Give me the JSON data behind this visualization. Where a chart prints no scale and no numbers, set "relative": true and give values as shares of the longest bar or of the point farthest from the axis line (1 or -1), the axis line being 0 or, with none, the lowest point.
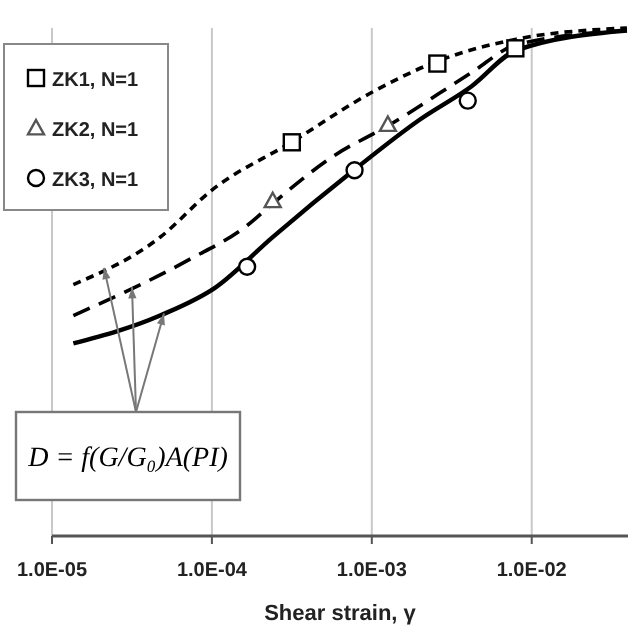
{
  "chart_data": {
    "type": "line",
    "relative": true,
    "log": "x",
    "grid": "x",
    "legend": "top left",
    "xlabel": "Shear strain, γ",
    "xlim": [
      1e-05,
      0.04
    ],
    "xticks": [
      {
        "value": 1e-05,
        "label": "1.0E-05"
      },
      {
        "value": 0.0001,
        "label": "1.0E-04"
      },
      {
        "value": 0.001,
        "label": "1.0E-03"
      },
      {
        "value": 0.01,
        "label": "1.0E-02"
      }
    ],
    "annotations": [
      "D = f(G/G₀)A(PI)"
    ],
    "series": [
      {
        "name": "ZK1, N=1",
        "type": "scatter",
        "marker": "square",
        "color": "#000000",
        "x": [
          0.000316,
          0.00257,
          0.0079
        ],
        "values": [
          0.775,
          0.93,
          0.96
        ]
      },
      {
        "name": "ZK2, N=1",
        "type": "scatter",
        "marker": "triangle",
        "color": "#555555",
        "x": [
          0.00024,
          0.00126
        ],
        "values": [
          0.66,
          0.81
        ]
      },
      {
        "name": "ZK3, N=1",
        "type": "scatter",
        "marker": "circle",
        "color": "#000000",
        "x": [
          0.000166,
          0.00078,
          0.00398
        ],
        "values": [
          0.53,
          0.72,
          0.857
        ]
      },
      {
        "line_style": "dotted",
        "color": "#000000",
        "x": [
          1.36e-05,
          4.74e-05,
          0.0001,
          0.000314,
          0.00101,
          0.00254,
          0.008,
          0.0394
        ],
        "values": [
          0.495,
          0.588,
          0.681,
          0.775,
          0.874,
          0.934,
          0.978,
          1.0
        ]
      },
      {
        "line_style": "dashed",
        "color": "#000000",
        "x": [
          1.36e-05,
          7.2e-05,
          0.000164,
          0.000239,
          0.00057,
          0.00127,
          0.00419,
          0.008,
          0.0394
        ],
        "values": [
          0.434,
          0.544,
          0.61,
          0.654,
          0.747,
          0.808,
          0.912,
          0.967,
          0.995
        ]
      },
      {
        "line_style": "solid",
        "color": "#000000",
        "x": [
          1.36e-05,
          4.74e-05,
          0.000105,
          0.000239,
          0.00077,
          0.00198,
          0.00419,
          0.008,
          0.0394
        ],
        "values": [
          0.379,
          0.434,
          0.489,
          0.588,
          0.72,
          0.819,
          0.885,
          0.956,
          0.995
        ]
      }
    ]
  }
}
